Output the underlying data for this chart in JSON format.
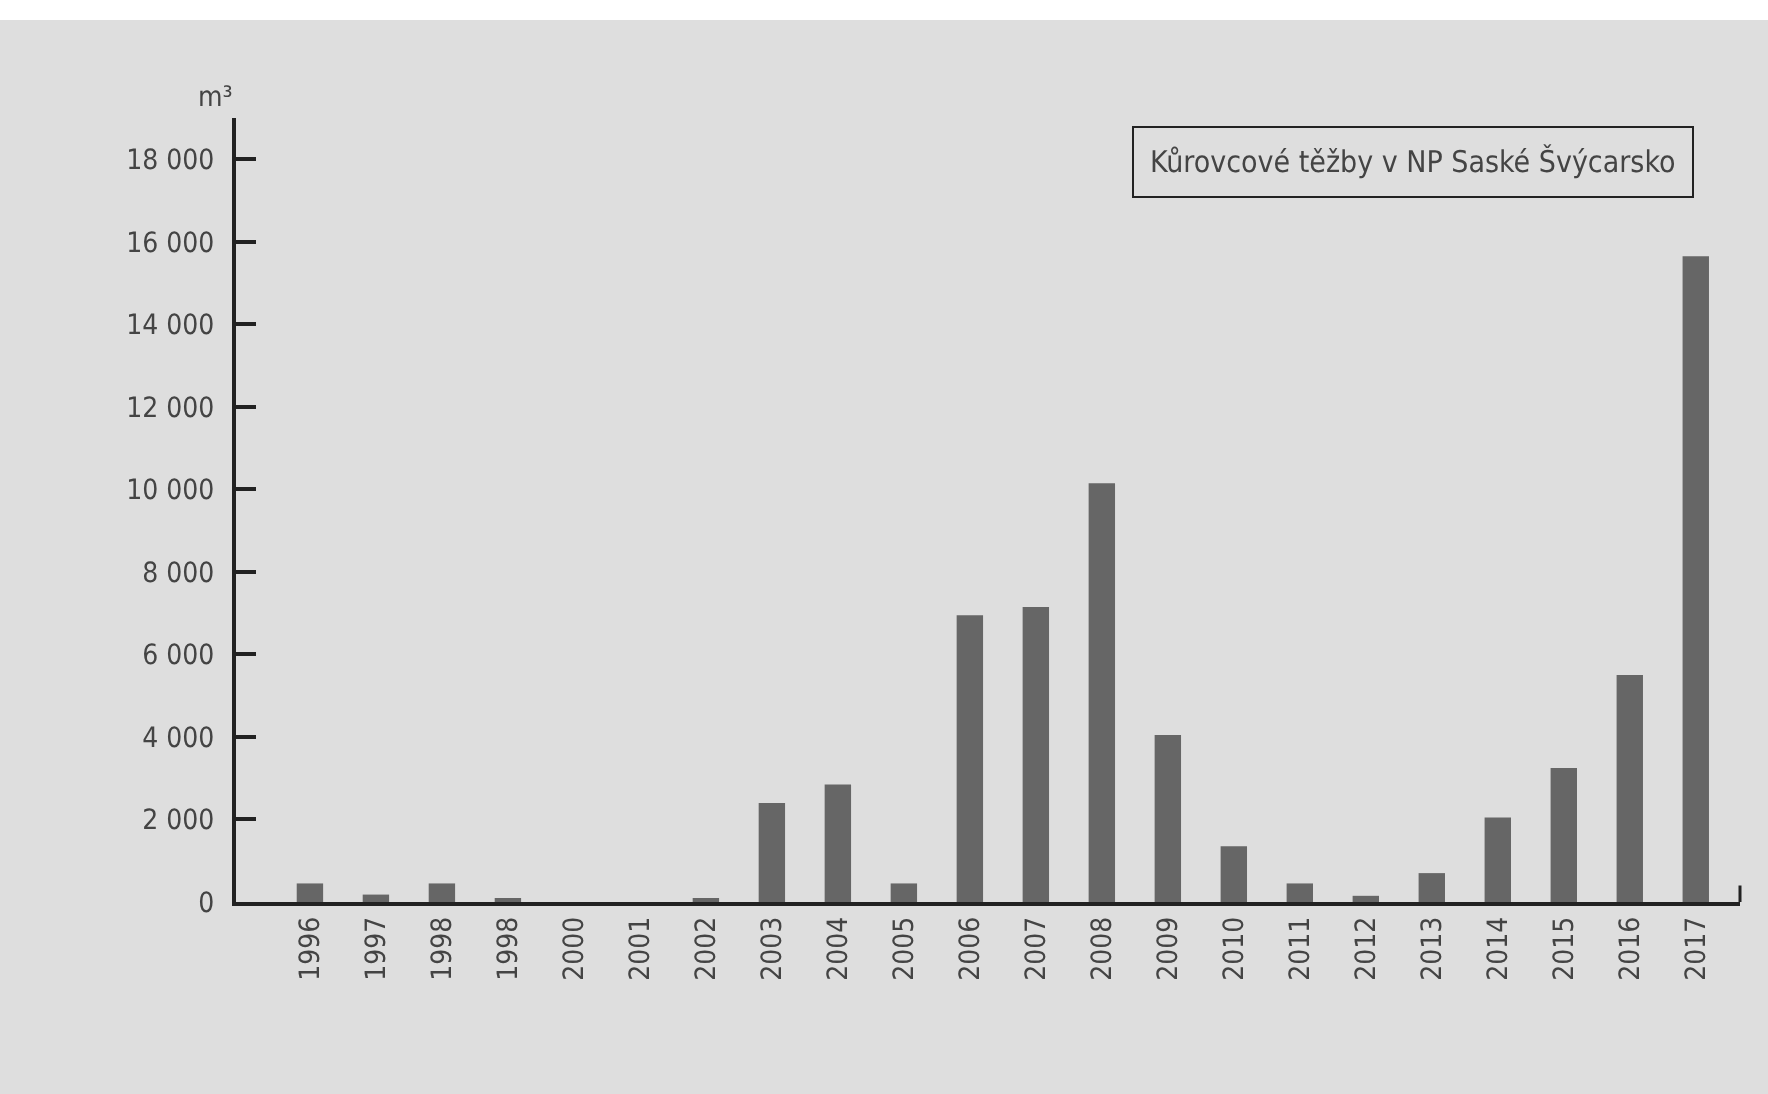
{
  "chart_data": {
    "type": "bar",
    "title": "Kůrovcové těžby v NP Saské Švýcarsko",
    "ylabel": "m³",
    "categories": [
      "1996",
      "1997",
      "1998",
      "1998",
      "2000",
      "2001",
      "2002",
      "2003",
      "2004",
      "2005",
      "2006",
      "2007",
      "2008",
      "2009",
      "2010",
      "2011",
      "2012",
      "2013",
      "2014",
      "2015",
      "2016",
      "2017"
    ],
    "values": [
      450,
      180,
      450,
      80,
      0,
      0,
      80,
      2400,
      2850,
      450,
      6950,
      7150,
      10150,
      4050,
      1350,
      450,
      150,
      700,
      2050,
      3250,
      5500,
      15650
    ],
    "color": "#666666",
    "ylim": [
      0,
      19000
    ],
    "yticks": [
      0,
      {
        "value": 2000,
        "label": "2 000"
      },
      {
        "value": 4000,
        "label": "4 000"
      },
      {
        "value": 6000,
        "label": "6 000"
      },
      {
        "value": 8000,
        "label": "8 000"
      },
      {
        "value": 10000,
        "label": "10 000"
      },
      {
        "value": 12000,
        "label": "12 000"
      },
      {
        "value": 14000,
        "label": "14 000"
      },
      {
        "value": 16000,
        "label": "16 000"
      },
      {
        "value": 18000,
        "label": "18 000"
      }
    ],
    "grid": false
  }
}
